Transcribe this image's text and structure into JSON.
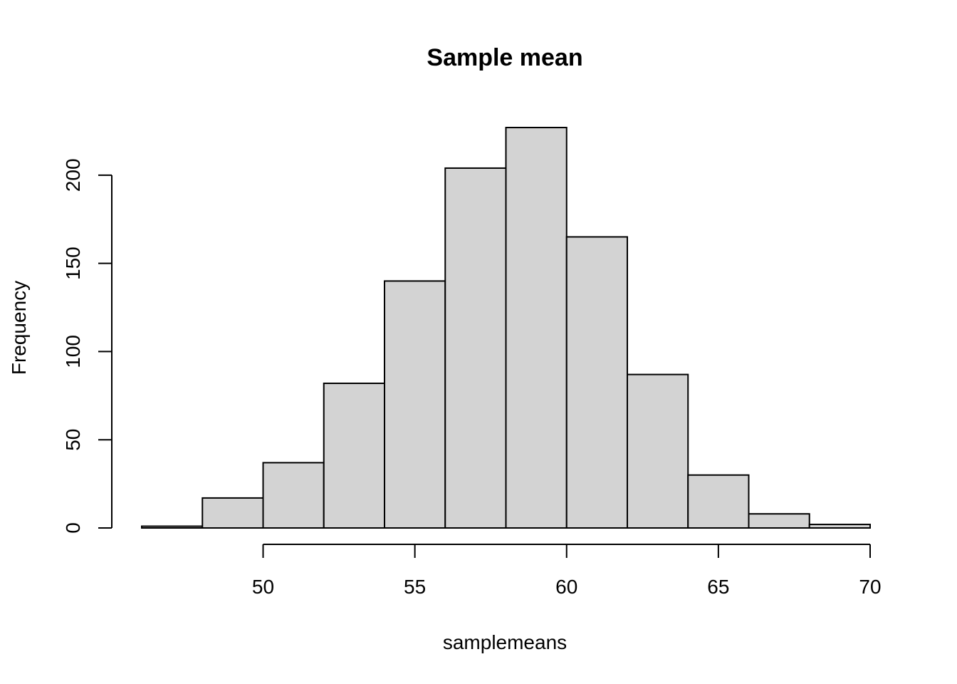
{
  "chart_data": {
    "type": "bar",
    "title": "Sample mean",
    "xlabel": "samplemeans",
    "ylabel": "Frequency",
    "bin_edges": [
      46,
      48,
      50,
      52,
      54,
      56,
      58,
      60,
      62,
      64,
      66,
      68,
      70
    ],
    "values": [
      1,
      17,
      37,
      82,
      140,
      204,
      227,
      165,
      87,
      30,
      8,
      2
    ],
    "xlim": [
      46,
      70
    ],
    "ylim": [
      0,
      227
    ],
    "x_ticks": [
      50,
      55,
      60,
      65,
      70
    ],
    "y_ticks": [
      0,
      50,
      100,
      150,
      200
    ],
    "grid": false,
    "colors": {
      "bar_fill": "#d3d3d3",
      "bar_stroke": "#000000"
    }
  }
}
